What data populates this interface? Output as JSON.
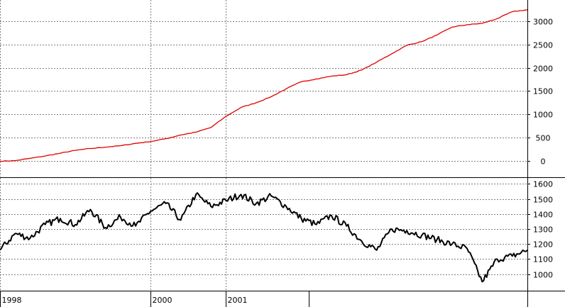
{
  "chart_data": [
    {
      "type": "line",
      "title": "",
      "panel": "top",
      "y_ticks": [
        0,
        500,
        1000,
        1500,
        2000,
        2500,
        3000
      ],
      "ylim": [
        -330,
        3450
      ],
      "grid": true,
      "series": [
        {
          "color": "#e00000",
          "x": [
            1998.0,
            1998.2,
            1998.4,
            1998.6,
            1998.8,
            1999.0,
            1999.2,
            1999.4,
            1999.6,
            1999.8,
            2000.0,
            2000.2,
            2000.4,
            2000.6,
            2000.8,
            2001.0,
            2001.2,
            2001.4,
            2001.6,
            2001.8,
            2002.0,
            2002.2,
            2002.4,
            2002.6,
            2002.8,
            2003.0,
            2003.2,
            2003.4,
            2003.6,
            2003.8,
            2004.0,
            2004.2,
            2004.4,
            2004.6,
            2004.8,
            2005.0
          ],
          "values": [
            0,
            10,
            60,
            110,
            170,
            230,
            270,
            300,
            330,
            380,
            420,
            480,
            560,
            620,
            720,
            960,
            1150,
            1250,
            1380,
            1550,
            1700,
            1760,
            1820,
            1850,
            1950,
            2120,
            2300,
            2480,
            2560,
            2700,
            2870,
            2920,
            2950,
            3050,
            3200,
            3240
          ]
        }
      ]
    },
    {
      "type": "line",
      "title": "",
      "panel": "bottom",
      "y_ticks": [
        1000,
        1100,
        1200,
        1300,
        1400,
        1500,
        1600
      ],
      "ylim": [
        890,
        1640
      ],
      "grid": true,
      "series": [
        {
          "color": "#000000",
          "x": [
            1998.0,
            1998.2,
            1998.4,
            1998.6,
            1998.8,
            1999.0,
            1999.2,
            1999.4,
            1999.6,
            1999.8,
            2000.0,
            2000.2,
            2000.4,
            2000.6,
            2000.8,
            2001.0,
            2001.2,
            2001.4,
            2001.6,
            2001.8,
            2002.0,
            2002.2,
            2002.4,
            2002.6,
            2002.8,
            2003.0,
            2003.2,
            2003.4,
            2003.6,
            2003.8,
            2004.0,
            2004.2,
            2004.4,
            2004.6,
            2004.8,
            2005.0
          ],
          "values": [
            1160,
            1270,
            1240,
            1330,
            1370,
            1330,
            1430,
            1310,
            1380,
            1320,
            1420,
            1470,
            1360,
            1530,
            1450,
            1490,
            1530,
            1470,
            1520,
            1450,
            1370,
            1330,
            1390,
            1320,
            1220,
            1160,
            1300,
            1290,
            1260,
            1230,
            1200,
            1170,
            950,
            1100,
            1120,
            1160
          ]
        }
      ]
    },
    {
      "type": "axis",
      "x_ticks": [
        {
          "value": 1998.0,
          "label": "1998"
        },
        {
          "value": 2000.0,
          "label": "2000"
        },
        {
          "value": 2001.0,
          "label": "2001"
        }
      ],
      "x_minor_ticks": [
        2002.1
      ],
      "xlim": [
        1998.0,
        2005.0
      ]
    }
  ]
}
